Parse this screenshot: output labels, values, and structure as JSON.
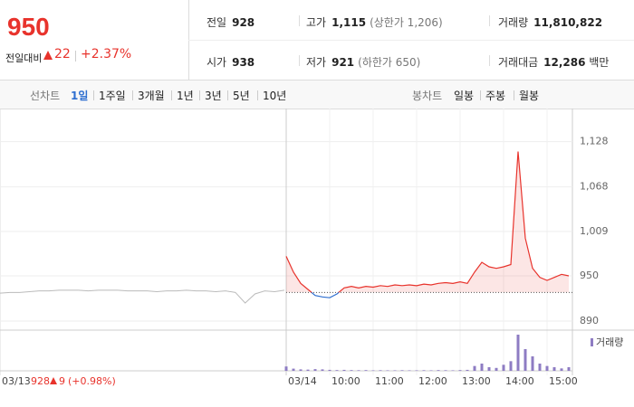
{
  "header": {
    "price": "950",
    "change_label": "전일대비",
    "change": "22",
    "change_rate": "+2.37%"
  },
  "stats": [
    {
      "label": "전일",
      "value": "928"
    },
    {
      "label": "고가",
      "value": "1,115",
      "note": "(상한가 1,206)"
    },
    {
      "label": "거래량",
      "value": "11,810,822"
    },
    {
      "label": "시가",
      "value": "938"
    },
    {
      "label": "저가",
      "value": "921",
      "note": "(하한가 650)"
    },
    {
      "label": "거래대금",
      "value": "12,286",
      "unit": "백만"
    }
  ],
  "line_tab": {
    "label": "선차트",
    "items": [
      "1일",
      "1주일",
      "3개월",
      "1년",
      "3년",
      "5년",
      "10년"
    ],
    "active": 0
  },
  "candle_tab": {
    "label": "봉차트",
    "items": [
      "일봉",
      "주봉",
      "월봉"
    ]
  },
  "chart": {
    "type": "line",
    "ylim": [
      878,
      1160
    ],
    "yticks": [
      {
        "value": 1128,
        "label": "1,128"
      },
      {
        "value": 1068,
        "label": "1,068"
      },
      {
        "value": 1009,
        "label": "1,009"
      },
      950,
      890
    ],
    "xticks": [
      "03/14",
      "10:00",
      "11:00",
      "12:00",
      "13:00",
      "14:00",
      "15:00"
    ],
    "prev_close": 928,
    "up_color": "#e8332c",
    "down_color": "#2e6fd0",
    "previous": {
      "color": "#bbbbbb",
      "values": [
        927,
        928,
        928,
        929,
        930,
        930,
        931,
        931,
        931,
        930,
        931,
        931,
        931,
        930,
        930,
        930,
        929,
        930,
        930,
        931,
        930,
        930,
        929,
        930,
        928,
        914,
        926,
        930,
        929,
        931
      ]
    },
    "today": {
      "values": [
        976,
        955,
        940,
        932,
        924,
        922,
        921,
        926,
        934,
        936,
        934,
        936,
        935,
        937,
        936,
        938,
        937,
        938,
        937,
        939,
        938,
        940,
        941,
        940,
        942,
        940,
        955,
        968,
        962,
        960,
        962,
        965,
        1115,
        1000,
        960,
        948,
        944,
        948,
        952,
        950
      ]
    },
    "volume": {
      "name": "거래량",
      "color": "#8e7cc3",
      "values": [
        180000,
        90000,
        60000,
        50000,
        70000,
        60000,
        40000,
        30000,
        40000,
        30000,
        25000,
        30000,
        20000,
        25000,
        20000,
        20000,
        25000,
        20000,
        20000,
        25000,
        20000,
        30000,
        25000,
        20000,
        30000,
        40000,
        200000,
        300000,
        150000,
        120000,
        250000,
        400000,
        1500000,
        900000,
        600000,
        300000,
        200000,
        150000,
        100000,
        150000
      ]
    },
    "footer": {
      "date": "03/13",
      "close": "928",
      "change": "9",
      "rate": "(+0.98%)"
    }
  }
}
